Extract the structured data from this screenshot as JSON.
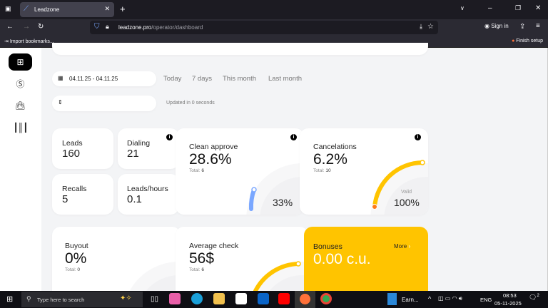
{
  "browser": {
    "tab_title": "Leadzone",
    "url_domain": "leadzone.pro",
    "url_path": "/operator/dashboard",
    "import_bookmarks": "Import bookmarks...",
    "finish_setup": "Finish setup",
    "sign_in": "Sign in"
  },
  "filters": {
    "date_range": "04.11.25 - 04.11.25",
    "quick": [
      "Today",
      "7 days",
      "This month",
      "Last month"
    ],
    "updated": "Updated in 0 seconds"
  },
  "stats": {
    "leads": {
      "label": "Leads",
      "value": "160"
    },
    "dialing": {
      "label": "Dialing",
      "value": "21"
    },
    "recalls": {
      "label": "Recalls",
      "value": "5"
    },
    "leads_hours": {
      "label": "Leads/hours",
      "value": "0.1"
    },
    "clean_approve": {
      "label": "Clean approve",
      "value": "28.6%",
      "total_label": "Total:",
      "total": "6",
      "gauge": "33%",
      "gauge_fraction": 0.33,
      "color": "#7aa7ff"
    },
    "cancelations": {
      "label": "Cancelations",
      "value": "6.2%",
      "total_label": "Total:",
      "total": "10",
      "gauge_label": "Valid",
      "gauge": "100%",
      "gauge_fraction": 1.0,
      "color": "#ffc400"
    },
    "buyout": {
      "label": "Buyout",
      "value": "0%",
      "total_label": "Total:",
      "total": "0"
    },
    "average_check": {
      "label": "Average check",
      "value": "56$",
      "total_label": "Total:",
      "total": "6",
      "color": "#ffc400"
    },
    "bonuses": {
      "label": "Bonuses",
      "value": "0.00 c.u.",
      "more": "More",
      "color": "#ffc400"
    }
  },
  "taskbar": {
    "search_placeholder": "Type here to search",
    "app_label": "Earn...",
    "lang": "ENG",
    "time": "08:53",
    "date": "05-11-2025",
    "notifications": "2"
  }
}
